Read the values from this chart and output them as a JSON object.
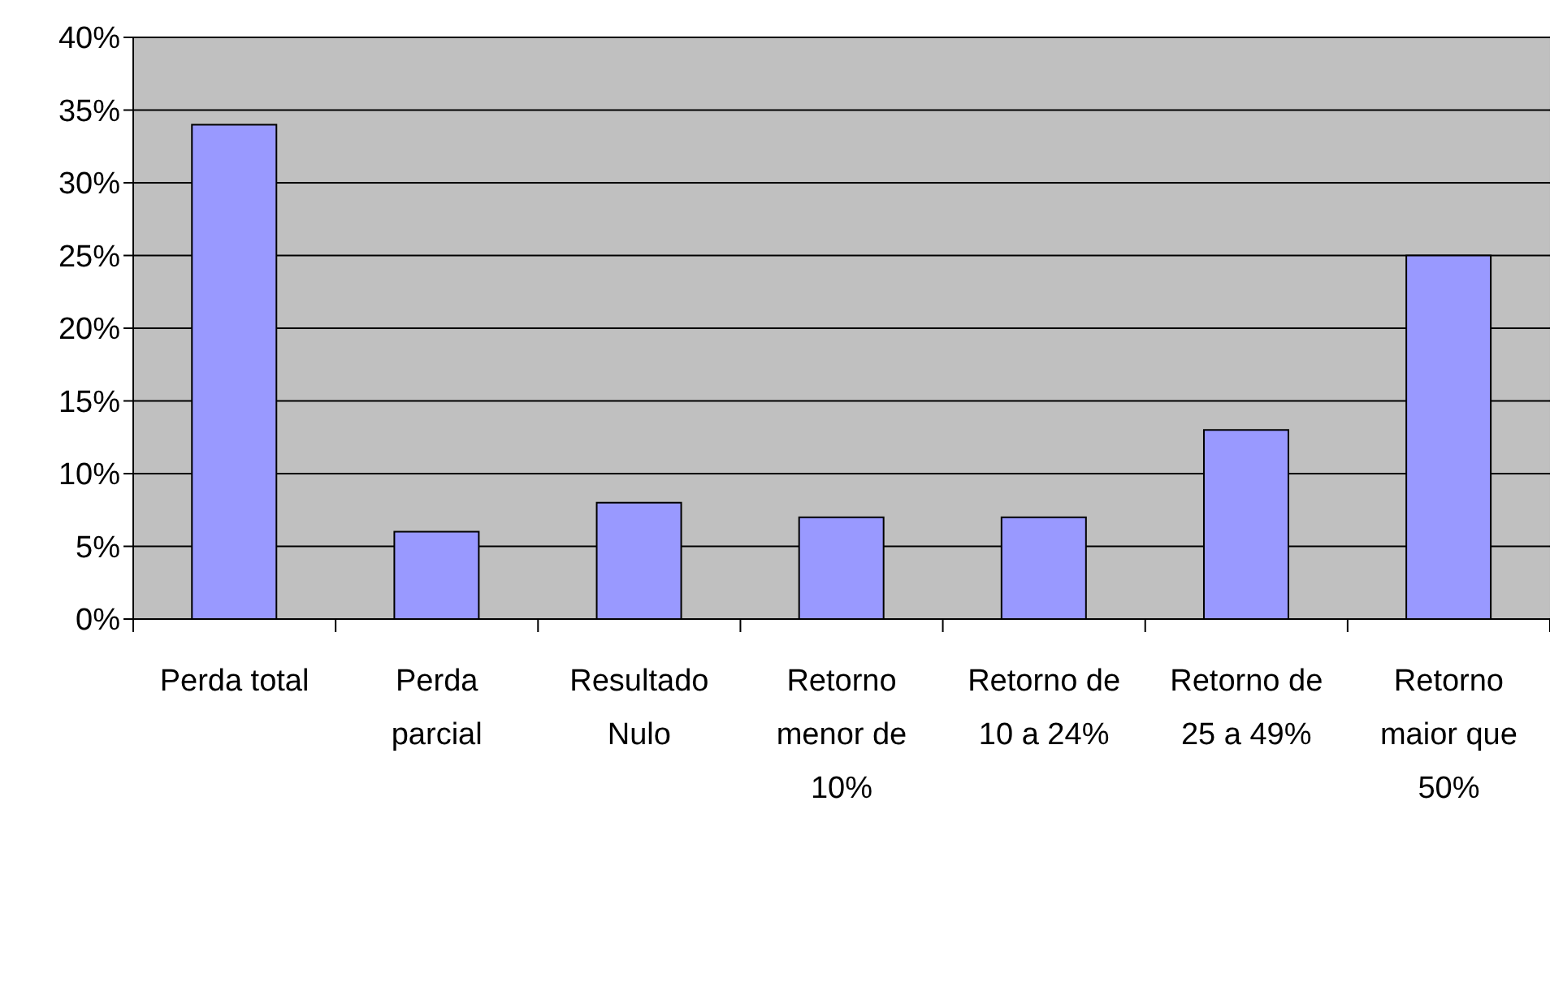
{
  "chart_data": {
    "type": "bar",
    "categories": [
      "Perda total",
      "Perda parcial",
      "Resultado Nulo",
      "Retorno menor de 10%",
      "Retorno de 10 a 24%",
      "Retorno de 25 a 49%",
      "Retorno maior que 50%"
    ],
    "values": [
      34,
      6,
      8,
      7,
      7,
      13,
      25
    ],
    "color": "#9999ff",
    "ylim": [
      0,
      40
    ],
    "yticks": [
      {
        "value": 0,
        "label": "0%"
      },
      {
        "value": 5,
        "label": "5%"
      },
      {
        "value": 10,
        "label": "10%"
      },
      {
        "value": 15,
        "label": "15%"
      },
      {
        "value": 20,
        "label": "20%"
      },
      {
        "value": 25,
        "label": "25%"
      },
      {
        "value": 30,
        "label": "30%"
      },
      {
        "value": 35,
        "label": "35%"
      },
      {
        "value": 40,
        "label": "40%"
      }
    ],
    "grid": "y",
    "legend": false
  }
}
